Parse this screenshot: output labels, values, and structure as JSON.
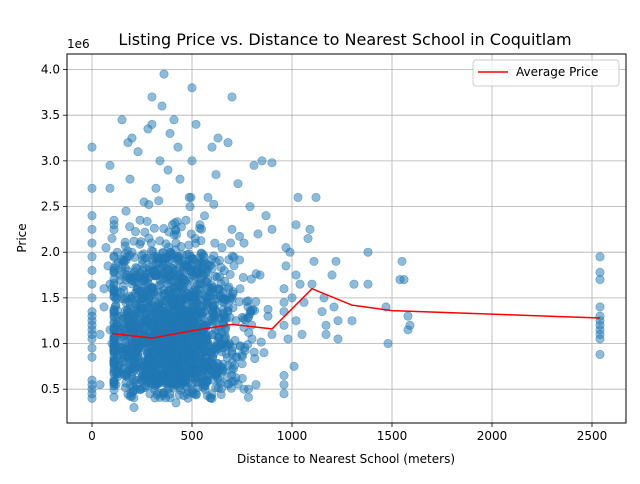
{
  "chart_data": {
    "type": "scatter",
    "title": "Listing Price vs. Distance to Nearest School in Coquitlam",
    "xlabel": "Distance to Nearest School (meters)",
    "ylabel": "Price",
    "y_offset_label": "1e6",
    "xlim": [
      -125,
      2670
    ],
    "ylim": [
      0.13,
      4.17
    ],
    "x_ticks": [
      0,
      500,
      1000,
      1500,
      2000,
      2500
    ],
    "x_tick_labels": [
      "0",
      "500",
      "1000",
      "1500",
      "2000",
      "2500"
    ],
    "y_ticks": [
      0.5,
      1.0,
      1.5,
      2.0,
      2.5,
      3.0,
      3.5,
      4.0
    ],
    "y_tick_labels": [
      "0.5",
      "1.0",
      "1.5",
      "2.0",
      "2.5",
      "3.0",
      "3.5",
      "4.0"
    ],
    "grid": true,
    "legend_position": "top-right",
    "colors": {
      "points": "#1f77b4",
      "average_line": "#ff0000"
    },
    "series": [
      {
        "name": "Average Price",
        "type": "line",
        "x": [
          100,
          300,
          500,
          700,
          900,
          1100,
          1300,
          1500,
          2540
        ],
        "y": [
          1.11,
          1.06,
          1.14,
          1.21,
          1.16,
          1.6,
          1.42,
          1.36,
          1.28
        ]
      },
      {
        "type": "scatter",
        "points": [
          [
            0,
            0.4
          ],
          [
            0,
            0.45
          ],
          [
            0,
            0.5
          ],
          [
            0,
            0.55
          ],
          [
            0,
            0.6
          ],
          [
            0,
            0.85
          ],
          [
            0,
            0.95
          ],
          [
            0,
            1.05
          ],
          [
            0,
            1.1
          ],
          [
            0,
            1.15
          ],
          [
            0,
            1.2
          ],
          [
            0,
            1.25
          ],
          [
            0,
            1.3
          ],
          [
            0,
            1.35
          ],
          [
            0,
            1.5
          ],
          [
            0,
            1.65
          ],
          [
            0,
            1.8
          ],
          [
            0,
            1.95
          ],
          [
            0,
            2.1
          ],
          [
            0,
            2.25
          ],
          [
            0,
            2.4
          ],
          [
            0,
            2.7
          ],
          [
            0,
            3.15
          ],
          [
            40,
            0.55
          ],
          [
            40,
            1.1
          ],
          [
            60,
            1.4
          ],
          [
            60,
            1.6
          ],
          [
            70,
            2.05
          ],
          [
            80,
            1.85
          ],
          [
            90,
            1.15
          ],
          [
            90,
            1.65
          ],
          [
            100,
            1.0
          ],
          [
            100,
            1.6
          ],
          [
            100,
            2.15
          ],
          [
            110,
            2.35
          ],
          [
            90,
            2.7
          ],
          [
            90,
            2.95
          ],
          [
            120,
            0.55
          ],
          [
            130,
            1.3
          ],
          [
            140,
            1.75
          ],
          [
            150,
            0.95
          ],
          [
            150,
            3.45
          ],
          [
            170,
            1.5
          ],
          [
            170,
            2.45
          ],
          [
            180,
            3.2
          ],
          [
            190,
            0.8
          ],
          [
            190,
            2.8
          ],
          [
            200,
            1.2
          ],
          [
            200,
            2.0
          ],
          [
            200,
            3.25
          ],
          [
            210,
            0.3
          ],
          [
            220,
            0.6
          ],
          [
            230,
            3.1
          ],
          [
            240,
            2.35
          ],
          [
            260,
            1.05
          ],
          [
            260,
            2.55
          ],
          [
            280,
            3.35
          ],
          [
            290,
            0.45
          ],
          [
            300,
            3.4
          ],
          [
            300,
            3.7
          ],
          [
            310,
            1.8
          ],
          [
            320,
            2.7
          ],
          [
            330,
            0.95
          ],
          [
            340,
            3.0
          ],
          [
            350,
            3.6
          ],
          [
            360,
            3.95
          ],
          [
            370,
            1.25
          ],
          [
            380,
            0.7
          ],
          [
            380,
            2.9
          ],
          [
            390,
            3.3
          ],
          [
            400,
            1.45
          ],
          [
            410,
            3.45
          ],
          [
            420,
            0.35
          ],
          [
            420,
            2.1
          ],
          [
            430,
            3.15
          ],
          [
            440,
            2.8
          ],
          [
            450,
            0.55
          ],
          [
            460,
            1.7
          ],
          [
            470,
            2.35
          ],
          [
            480,
            0.9
          ],
          [
            490,
            2.5
          ],
          [
            500,
            3.0
          ],
          [
            500,
            3.8
          ],
          [
            510,
            0.45
          ],
          [
            520,
            3.4
          ],
          [
            540,
            2.3
          ],
          [
            550,
            0.7
          ],
          [
            560,
            1.95
          ],
          [
            580,
            2.6
          ],
          [
            600,
            0.4
          ],
          [
            600,
            3.15
          ],
          [
            620,
            2.85
          ],
          [
            630,
            3.25
          ],
          [
            640,
            0.6
          ],
          [
            650,
            2.05
          ],
          [
            680,
            1.35
          ],
          [
            680,
            3.2
          ],
          [
            700,
            3.7
          ],
          [
            700,
            2.25
          ],
          [
            720,
            0.85
          ],
          [
            730,
            2.75
          ],
          [
            740,
            1.6
          ],
          [
            760,
            0.5
          ],
          [
            760,
            2.1
          ],
          [
            780,
            1.4
          ],
          [
            790,
            2.5
          ],
          [
            800,
            1.05
          ],
          [
            810,
            2.95
          ],
          [
            820,
            0.55
          ],
          [
            830,
            2.2
          ],
          [
            840,
            1.75
          ],
          [
            850,
            3.0
          ],
          [
            860,
            0.9
          ],
          [
            870,
            2.4
          ],
          [
            880,
            1.3
          ],
          [
            900,
            1.1
          ],
          [
            900,
            2.25
          ],
          [
            900,
            2.98
          ],
          [
            960,
            0.45
          ],
          [
            960,
            0.55
          ],
          [
            960,
            0.65
          ],
          [
            960,
            1.2
          ],
          [
            960,
            1.35
          ],
          [
            960,
            1.45
          ],
          [
            960,
            1.6
          ],
          [
            970,
            1.85
          ],
          [
            970,
            2.05
          ],
          [
            980,
            1.05
          ],
          [
            990,
            2.0
          ],
          [
            1000,
            1.5
          ],
          [
            1010,
            0.75
          ],
          [
            1020,
            1.25
          ],
          [
            1020,
            1.75
          ],
          [
            1020,
            2.3
          ],
          [
            1030,
            2.6
          ],
          [
            1040,
            1.65
          ],
          [
            1050,
            1.1
          ],
          [
            1060,
            1.45
          ],
          [
            1080,
            2.15
          ],
          [
            1090,
            2.25
          ],
          [
            1100,
            1.65
          ],
          [
            1110,
            1.9
          ],
          [
            1120,
            2.6
          ],
          [
            1150,
            1.35
          ],
          [
            1160,
            1.5
          ],
          [
            1170,
            1.2
          ],
          [
            1170,
            1.1
          ],
          [
            1200,
            1.75
          ],
          [
            1210,
            1.4
          ],
          [
            1220,
            1.9
          ],
          [
            1230,
            1.05
          ],
          [
            1230,
            1.25
          ],
          [
            1300,
            1.25
          ],
          [
            1310,
            1.65
          ],
          [
            1380,
            1.65
          ],
          [
            1380,
            2.0
          ],
          [
            1470,
            1.4
          ],
          [
            1480,
            1.0
          ],
          [
            1540,
            1.7
          ],
          [
            1550,
            1.9
          ],
          [
            1560,
            1.7
          ],
          [
            1580,
            1.15
          ],
          [
            1580,
            1.3
          ],
          [
            1590,
            1.2
          ],
          [
            2540,
            0.88
          ],
          [
            2540,
            1.05
          ],
          [
            2540,
            1.1
          ],
          [
            2540,
            1.15
          ],
          [
            2540,
            1.2
          ],
          [
            2540,
            1.25
          ],
          [
            2540,
            1.3
          ],
          [
            2540,
            1.4
          ],
          [
            2540,
            1.7
          ],
          [
            2540,
            1.78
          ],
          [
            2540,
            1.95
          ]
        ]
      }
    ]
  }
}
